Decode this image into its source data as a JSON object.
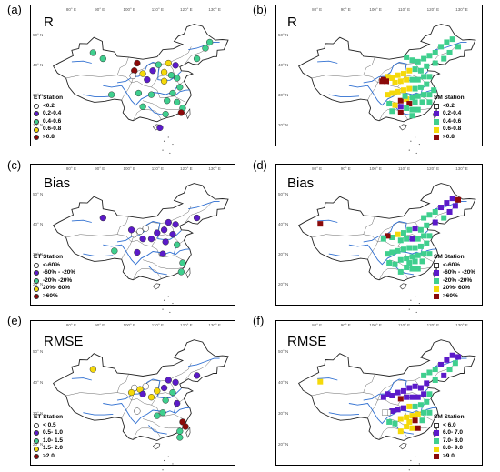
{
  "lon_labels": [
    "80° E",
    "90° E",
    "100° E",
    "110° E",
    "120° E",
    "130° E"
  ],
  "lat_labels": [
    "50° N",
    "40° N",
    "30° N",
    "20° N"
  ],
  "colors": {
    "c0": "#ffffff",
    "c1": "#5b1ac9",
    "c2": "#3fcf8e",
    "c3": "#f5d90a",
    "c4": "#8b0a0a",
    "boundary": "#222222",
    "river": "#2f6fd1"
  },
  "panels": [
    {
      "id": "a",
      "label": "(a)",
      "title": "R",
      "legend_title": "ET Station",
      "marker": "circle",
      "legend": [
        "<0.2",
        "0.2-0.4",
        "0.4-0.6",
        "0.6-0.8",
        ">0.8"
      ]
    },
    {
      "id": "b",
      "label": "(b)",
      "title": "R",
      "legend_title": "SM Station",
      "marker": "square",
      "legend": [
        "<0.2",
        "0.2-0.4",
        "0.4-0.6",
        "0.6-0.8",
        ">0.8"
      ]
    },
    {
      "id": "c",
      "label": "(c)",
      "title": "Bias",
      "legend_title": "ET Station",
      "marker": "circle",
      "legend": [
        "<-60%",
        "-60% - -20%",
        "-20% -20%",
        "20%- 60%",
        ">60%"
      ]
    },
    {
      "id": "d",
      "label": "(d)",
      "title": "Bias",
      "legend_title": "SM Station",
      "marker": "square",
      "legend": [
        "<-60%",
        "-60% - -20%",
        "-20% -20%",
        "20%- 60%",
        ">60%"
      ]
    },
    {
      "id": "e",
      "label": "(e)",
      "title": "RMSE",
      "legend_title": "ET Station",
      "marker": "circle",
      "legend": [
        "< 0.5",
        "0.5- 1.0",
        "1.0- 1.5",
        "1.5- 2.0",
        ">2.0"
      ]
    },
    {
      "id": "f",
      "label": "(f)",
      "title": "RMSE",
      "legend_title": "SM Station",
      "marker": "square",
      "legend": [
        "< 6.0",
        "6.0- 7.0",
        "7.0- 8.0",
        "8.0- 9.0",
        ">9.0"
      ]
    }
  ],
  "stations": {
    "a": [
      {
        "lon": 87.5,
        "lat": 44,
        "c": 2
      },
      {
        "lon": 91,
        "lat": 42,
        "c": 2
      },
      {
        "lon": 102,
        "lat": 38,
        "c": 4
      },
      {
        "lon": 101.5,
        "lat": 36.3,
        "c": 0
      },
      {
        "lon": 103,
        "lat": 40.5,
        "c": 4
      },
      {
        "lon": 105,
        "lat": 37,
        "c": 3
      },
      {
        "lon": 106.5,
        "lat": 35,
        "c": 1
      },
      {
        "lon": 108.5,
        "lat": 38,
        "c": 1
      },
      {
        "lon": 110.5,
        "lat": 40,
        "c": 2
      },
      {
        "lon": 112.5,
        "lat": 37.5,
        "c": 3
      },
      {
        "lon": 114,
        "lat": 40.5,
        "c": 3
      },
      {
        "lon": 116.5,
        "lat": 39.8,
        "c": 1
      },
      {
        "lon": 115,
        "lat": 36.5,
        "c": 2
      },
      {
        "lon": 112.5,
        "lat": 34.5,
        "c": 3
      },
      {
        "lon": 117,
        "lat": 35.5,
        "c": 2
      },
      {
        "lon": 118,
        "lat": 32.5,
        "c": 2
      },
      {
        "lon": 115.5,
        "lat": 30.5,
        "c": 2
      },
      {
        "lon": 124,
        "lat": 42,
        "c": 2
      },
      {
        "lon": 127,
        "lat": 45.5,
        "c": 2
      },
      {
        "lon": 128.5,
        "lat": 47.5,
        "c": 2
      },
      {
        "lon": 94,
        "lat": 30,
        "c": 2
      },
      {
        "lon": 103.5,
        "lat": 30.5,
        "c": 2
      },
      {
        "lon": 108,
        "lat": 30,
        "c": 2
      },
      {
        "lon": 113.5,
        "lat": 28,
        "c": 2
      },
      {
        "lon": 117,
        "lat": 27.5,
        "c": 2
      },
      {
        "lon": 119,
        "lat": 25.5,
        "c": 2
      },
      {
        "lon": 113,
        "lat": 23.5,
        "c": 2
      },
      {
        "lon": 105,
        "lat": 26,
        "c": 2
      },
      {
        "lon": 111,
        "lat": 19,
        "c": 1
      },
      {
        "lon": 118.5,
        "lat": 24,
        "c": 4
      }
    ],
    "b": [
      {
        "lon": 111,
        "lat": 42.5,
        "c": 2
      },
      {
        "lon": 113,
        "lat": 41.5,
        "c": 2
      },
      {
        "lon": 115,
        "lat": 41,
        "c": 2
      },
      {
        "lon": 117,
        "lat": 42,
        "c": 2
      },
      {
        "lon": 119,
        "lat": 43,
        "c": 2
      },
      {
        "lon": 121,
        "lat": 44,
        "c": 2
      },
      {
        "lon": 123,
        "lat": 46,
        "c": 2
      },
      {
        "lon": 125,
        "lat": 47.5,
        "c": 2
      },
      {
        "lon": 127,
        "lat": 48.5,
        "c": 2
      },
      {
        "lon": 129,
        "lat": 46,
        "c": 2
      },
      {
        "lon": 126,
        "lat": 44,
        "c": 2
      },
      {
        "lon": 124,
        "lat": 42,
        "c": 2
      },
      {
        "lon": 121,
        "lat": 40.5,
        "c": 2
      },
      {
        "lon": 118,
        "lat": 39.5,
        "c": 2
      },
      {
        "lon": 116,
        "lat": 38,
        "c": 2
      },
      {
        "lon": 114,
        "lat": 38.5,
        "c": 2
      },
      {
        "lon": 112,
        "lat": 38,
        "c": 3
      },
      {
        "lon": 110,
        "lat": 37,
        "c": 3
      },
      {
        "lon": 108,
        "lat": 36.5,
        "c": 3
      },
      {
        "lon": 106,
        "lat": 35.5,
        "c": 3
      },
      {
        "lon": 104.5,
        "lat": 36,
        "c": 3
      },
      {
        "lon": 103,
        "lat": 35,
        "c": 4
      },
      {
        "lon": 102.5,
        "lat": 34.5,
        "c": 4
      },
      {
        "lon": 104,
        "lat": 34.5,
        "c": 4
      },
      {
        "lon": 107,
        "lat": 34,
        "c": 3
      },
      {
        "lon": 109,
        "lat": 34.5,
        "c": 3
      },
      {
        "lon": 111,
        "lat": 35,
        "c": 3
      },
      {
        "lon": 113,
        "lat": 35,
        "c": 2
      },
      {
        "lon": 115,
        "lat": 35,
        "c": 2
      },
      {
        "lon": 117,
        "lat": 36,
        "c": 2
      },
      {
        "lon": 119,
        "lat": 36,
        "c": 2
      },
      {
        "lon": 118,
        "lat": 33.5,
        "c": 2
      },
      {
        "lon": 116,
        "lat": 32.5,
        "c": 2
      },
      {
        "lon": 114,
        "lat": 32,
        "c": 2
      },
      {
        "lon": 112,
        "lat": 32,
        "c": 3
      },
      {
        "lon": 110,
        "lat": 31.5,
        "c": 3
      },
      {
        "lon": 108,
        "lat": 31,
        "c": 3
      },
      {
        "lon": 106,
        "lat": 30.5,
        "c": 3
      },
      {
        "lon": 104.5,
        "lat": 30,
        "c": 3
      },
      {
        "lon": 120.5,
        "lat": 31.5,
        "c": 2
      },
      {
        "lon": 119,
        "lat": 30,
        "c": 2
      },
      {
        "lon": 117,
        "lat": 30,
        "c": 2
      },
      {
        "lon": 115,
        "lat": 29.5,
        "c": 2
      },
      {
        "lon": 113,
        "lat": 29,
        "c": 2
      },
      {
        "lon": 111,
        "lat": 28.5,
        "c": 3
      },
      {
        "lon": 109,
        "lat": 28,
        "c": 4
      },
      {
        "lon": 112,
        "lat": 27,
        "c": 4
      },
      {
        "lon": 114,
        "lat": 27.5,
        "c": 2
      },
      {
        "lon": 116.5,
        "lat": 27.5,
        "c": 2
      },
      {
        "lon": 119,
        "lat": 27.5,
        "c": 2
      },
      {
        "lon": 113,
        "lat": 25,
        "c": 2
      },
      {
        "lon": 115,
        "lat": 25,
        "c": 2
      },
      {
        "lon": 111,
        "lat": 25.5,
        "c": 2
      },
      {
        "lon": 109,
        "lat": 24,
        "c": 4
      },
      {
        "lon": 113,
        "lat": 23,
        "c": 2
      },
      {
        "lon": 107,
        "lat": 26.5,
        "c": 3
      },
      {
        "lon": 105,
        "lat": 27,
        "c": 2
      },
      {
        "lon": 110.5,
        "lat": 29.5,
        "c": 2
      },
      {
        "lon": 109,
        "lat": 26,
        "c": 1
      },
      {
        "lon": 106,
        "lat": 24.5,
        "c": 2
      }
    ],
    "c": [
      {
        "lon": 91,
        "lat": 42,
        "c": 1
      },
      {
        "lon": 102,
        "lat": 36.5,
        "c": 0
      },
      {
        "lon": 104,
        "lat": 37.5,
        "c": 0
      },
      {
        "lon": 101,
        "lat": 38,
        "c": 1
      },
      {
        "lon": 106,
        "lat": 38.5,
        "c": 0
      },
      {
        "lon": 105,
        "lat": 35,
        "c": 1
      },
      {
        "lon": 108,
        "lat": 35,
        "c": 1
      },
      {
        "lon": 110,
        "lat": 37,
        "c": 1
      },
      {
        "lon": 112.5,
        "lat": 38,
        "c": 1
      },
      {
        "lon": 114,
        "lat": 40.5,
        "c": 1
      },
      {
        "lon": 116.5,
        "lat": 39.8,
        "c": 1
      },
      {
        "lon": 115.5,
        "lat": 36.5,
        "c": 1
      },
      {
        "lon": 113,
        "lat": 34,
        "c": 1
      },
      {
        "lon": 117,
        "lat": 33,
        "c": 2
      },
      {
        "lon": 112,
        "lat": 30,
        "c": 1
      },
      {
        "lon": 103,
        "lat": 30.5,
        "c": 1
      },
      {
        "lon": 95,
        "lat": 31,
        "c": 2
      },
      {
        "lon": 119,
        "lat": 27,
        "c": 2
      },
      {
        "lon": 124,
        "lat": 42,
        "c": 1
      },
      {
        "lon": 118.5,
        "lat": 24,
        "c": 2
      }
    ],
    "d": [
      {
        "lon": 81,
        "lat": 40,
        "c": 4
      },
      {
        "lon": 127,
        "lat": 48.5,
        "c": 1
      },
      {
        "lon": 129,
        "lat": 48,
        "c": 4
      },
      {
        "lon": 125,
        "lat": 47,
        "c": 1
      },
      {
        "lon": 123,
        "lat": 45.5,
        "c": 1
      },
      {
        "lon": 126,
        "lat": 44,
        "c": 1
      },
      {
        "lon": 128,
        "lat": 46,
        "c": 1
      },
      {
        "lon": 121,
        "lat": 44,
        "c": 2
      },
      {
        "lon": 119,
        "lat": 43,
        "c": 2
      },
      {
        "lon": 117,
        "lat": 42,
        "c": 2
      },
      {
        "lon": 124,
        "lat": 42,
        "c": 2
      },
      {
        "lon": 121,
        "lat": 40.5,
        "c": 1
      },
      {
        "lon": 118,
        "lat": 39.5,
        "c": 2
      },
      {
        "lon": 116,
        "lat": 38,
        "c": 2
      },
      {
        "lon": 114,
        "lat": 38.5,
        "c": 1
      },
      {
        "lon": 112,
        "lat": 38,
        "c": 2
      },
      {
        "lon": 110,
        "lat": 37,
        "c": 2
      },
      {
        "lon": 108,
        "lat": 36.5,
        "c": 3
      },
      {
        "lon": 106,
        "lat": 35.5,
        "c": 2
      },
      {
        "lon": 104.5,
        "lat": 36,
        "c": 4
      },
      {
        "lon": 103,
        "lat": 35,
        "c": 2
      },
      {
        "lon": 109,
        "lat": 34.5,
        "c": 2
      },
      {
        "lon": 111,
        "lat": 35,
        "c": 2
      },
      {
        "lon": 113,
        "lat": 35,
        "c": 1
      },
      {
        "lon": 115,
        "lat": 35,
        "c": 2
      },
      {
        "lon": 117,
        "lat": 36,
        "c": 2
      },
      {
        "lon": 119,
        "lat": 36,
        "c": 2
      },
      {
        "lon": 118,
        "lat": 33.5,
        "c": 2
      },
      {
        "lon": 116,
        "lat": 32.5,
        "c": 2
      },
      {
        "lon": 114,
        "lat": 32,
        "c": 2
      },
      {
        "lon": 112,
        "lat": 32,
        "c": 2
      },
      {
        "lon": 110,
        "lat": 31.5,
        "c": 2
      },
      {
        "lon": 108,
        "lat": 31,
        "c": 2
      },
      {
        "lon": 106,
        "lat": 30.5,
        "c": 2
      },
      {
        "lon": 104.5,
        "lat": 30,
        "c": 2
      },
      {
        "lon": 119,
        "lat": 30,
        "c": 2
      },
      {
        "lon": 117,
        "lat": 30,
        "c": 2
      },
      {
        "lon": 115,
        "lat": 29.5,
        "c": 2
      },
      {
        "lon": 113,
        "lat": 29,
        "c": 2
      },
      {
        "lon": 111,
        "lat": 28.5,
        "c": 2
      },
      {
        "lon": 109,
        "lat": 28,
        "c": 2
      },
      {
        "lon": 112,
        "lat": 27,
        "c": 2
      },
      {
        "lon": 114,
        "lat": 27.5,
        "c": 2
      },
      {
        "lon": 116.5,
        "lat": 27.5,
        "c": 2
      },
      {
        "lon": 113,
        "lat": 25,
        "c": 2
      },
      {
        "lon": 115,
        "lat": 25,
        "c": 2
      },
      {
        "lon": 111,
        "lat": 25.5,
        "c": 2
      },
      {
        "lon": 109,
        "lat": 24,
        "c": 2
      },
      {
        "lon": 107,
        "lat": 26.5,
        "c": 2
      },
      {
        "lon": 105,
        "lat": 27,
        "c": 2
      }
    ],
    "e": [
      {
        "lon": 87.5,
        "lat": 44,
        "c": 3
      },
      {
        "lon": 102,
        "lat": 38,
        "c": 0
      },
      {
        "lon": 104,
        "lat": 37.5,
        "c": 3
      },
      {
        "lon": 101,
        "lat": 36.5,
        "c": 3
      },
      {
        "lon": 106,
        "lat": 38.5,
        "c": 0
      },
      {
        "lon": 105,
        "lat": 36,
        "c": 1
      },
      {
        "lon": 108,
        "lat": 35,
        "c": 3
      },
      {
        "lon": 110,
        "lat": 37,
        "c": 3
      },
      {
        "lon": 112.5,
        "lat": 38,
        "c": 1
      },
      {
        "lon": 114,
        "lat": 40.5,
        "c": 1
      },
      {
        "lon": 116.5,
        "lat": 39.8,
        "c": 1
      },
      {
        "lon": 115.5,
        "lat": 36.5,
        "c": 2
      },
      {
        "lon": 113,
        "lat": 34,
        "c": 2
      },
      {
        "lon": 117,
        "lat": 33,
        "c": 1
      },
      {
        "lon": 112,
        "lat": 30,
        "c": 2
      },
      {
        "lon": 103,
        "lat": 30.5,
        "c": 0
      },
      {
        "lon": 110,
        "lat": 29,
        "c": 2
      },
      {
        "lon": 119,
        "lat": 27,
        "c": 4
      },
      {
        "lon": 124,
        "lat": 42,
        "c": 1
      },
      {
        "lon": 118,
        "lat": 24,
        "c": 2
      },
      {
        "lon": 118,
        "lat": 22,
        "c": 2
      },
      {
        "lon": 120,
        "lat": 25.5,
        "c": 4
      }
    ],
    "f": [
      {
        "lon": 81,
        "lat": 40,
        "c": 3
      },
      {
        "lon": 127,
        "lat": 48.5,
        "c": 1
      },
      {
        "lon": 129,
        "lat": 48,
        "c": 1
      },
      {
        "lon": 125,
        "lat": 47,
        "c": 1
      },
      {
        "lon": 123,
        "lat": 45.5,
        "c": 1
      },
      {
        "lon": 126,
        "lat": 44,
        "c": 2
      },
      {
        "lon": 128,
        "lat": 46,
        "c": 2
      },
      {
        "lon": 121,
        "lat": 44,
        "c": 2
      },
      {
        "lon": 119,
        "lat": 43,
        "c": 2
      },
      {
        "lon": 117,
        "lat": 42,
        "c": 2
      },
      {
        "lon": 124,
        "lat": 42,
        "c": 1
      },
      {
        "lon": 121,
        "lat": 40.5,
        "c": 2
      },
      {
        "lon": 118,
        "lat": 39.5,
        "c": 1
      },
      {
        "lon": 116,
        "lat": 38,
        "c": 1
      },
      {
        "lon": 114,
        "lat": 38.5,
        "c": 1
      },
      {
        "lon": 112,
        "lat": 38,
        "c": 1
      },
      {
        "lon": 110,
        "lat": 37,
        "c": 1
      },
      {
        "lon": 108,
        "lat": 36.5,
        "c": 1
      },
      {
        "lon": 106,
        "lat": 35.5,
        "c": 1
      },
      {
        "lon": 104.5,
        "lat": 36,
        "c": 1
      },
      {
        "lon": 103,
        "lat": 35,
        "c": 1
      },
      {
        "lon": 109,
        "lat": 34.5,
        "c": 4
      },
      {
        "lon": 111,
        "lat": 35,
        "c": 1
      },
      {
        "lon": 113,
        "lat": 35,
        "c": 1
      },
      {
        "lon": 115,
        "lat": 35,
        "c": 1
      },
      {
        "lon": 117,
        "lat": 36,
        "c": 1
      },
      {
        "lon": 119,
        "lat": 36,
        "c": 2
      },
      {
        "lon": 118,
        "lat": 33.5,
        "c": 2
      },
      {
        "lon": 116,
        "lat": 32.5,
        "c": 2
      },
      {
        "lon": 114,
        "lat": 32,
        "c": 2
      },
      {
        "lon": 112,
        "lat": 32,
        "c": 3
      },
      {
        "lon": 110,
        "lat": 31.5,
        "c": 1
      },
      {
        "lon": 108,
        "lat": 31,
        "c": 1
      },
      {
        "lon": 106,
        "lat": 30.5,
        "c": 1
      },
      {
        "lon": 104.5,
        "lat": 30,
        "c": 0
      },
      {
        "lon": 103.5,
        "lat": 30,
        "c": 0
      },
      {
        "lon": 119,
        "lat": 30,
        "c": 2
      },
      {
        "lon": 117,
        "lat": 30,
        "c": 2
      },
      {
        "lon": 115,
        "lat": 29.5,
        "c": 3
      },
      {
        "lon": 113,
        "lat": 29,
        "c": 3
      },
      {
        "lon": 111,
        "lat": 28.5,
        "c": 3
      },
      {
        "lon": 109,
        "lat": 28,
        "c": 3
      },
      {
        "lon": 112,
        "lat": 27,
        "c": 3
      },
      {
        "lon": 114,
        "lat": 27.5,
        "c": 4
      },
      {
        "lon": 116.5,
        "lat": 27.5,
        "c": 2
      },
      {
        "lon": 113,
        "lat": 25,
        "c": 3
      },
      {
        "lon": 115,
        "lat": 25,
        "c": 4
      },
      {
        "lon": 111,
        "lat": 25.5,
        "c": 3
      },
      {
        "lon": 109,
        "lat": 24,
        "c": 3
      },
      {
        "lon": 107,
        "lat": 26.5,
        "c": 2
      },
      {
        "lon": 105,
        "lat": 27,
        "c": 2
      }
    ]
  }
}
